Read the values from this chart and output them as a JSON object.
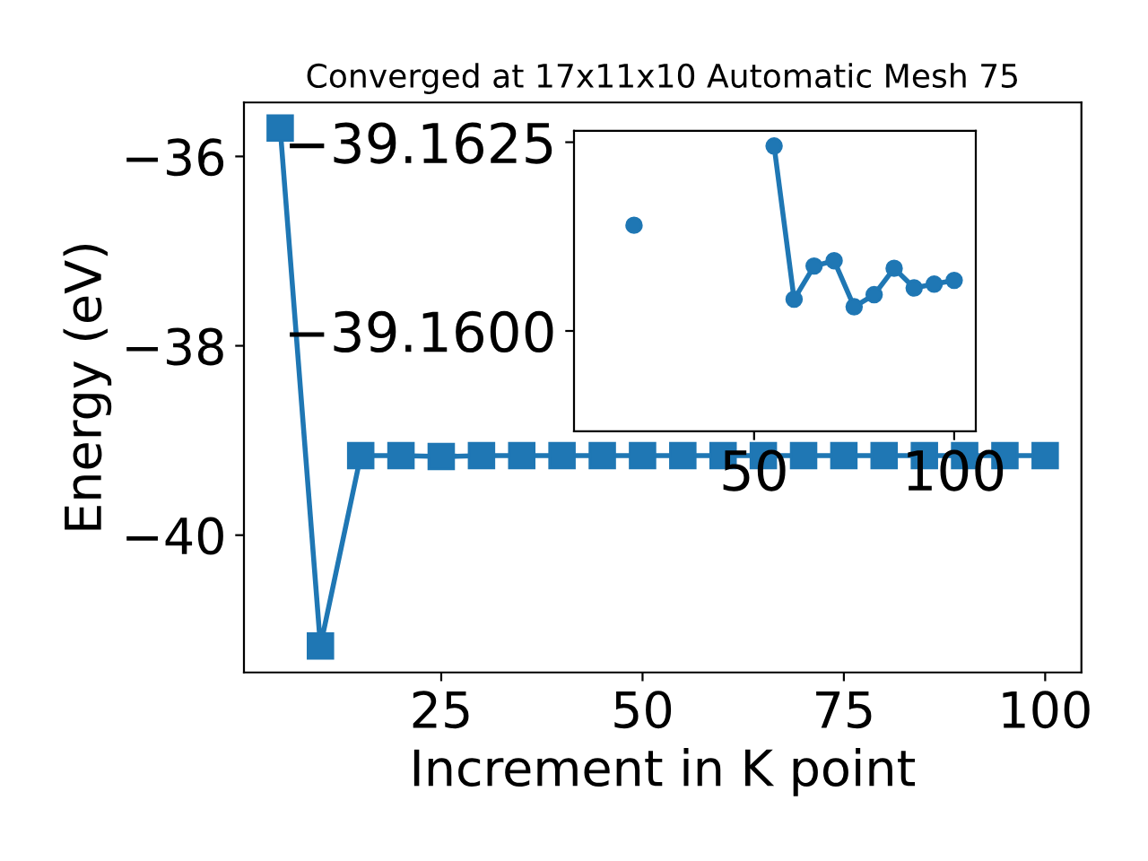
{
  "chart_data": [
    {
      "type": "line",
      "title": "Converged at 17x11x10 Automatic Mesh 75",
      "xlabel": "Increment in K point",
      "ylabel": "Energy (eV)",
      "x": [
        5,
        10,
        15,
        20,
        25,
        30,
        35,
        40,
        45,
        50,
        55,
        60,
        65,
        70,
        75,
        80,
        85,
        90,
        95,
        100
      ],
      "series": [
        {
          "color": "#1f77b4",
          "values": [
            -35.7,
            -41.17,
            -39.16,
            -39.16,
            -39.17,
            -39.16,
            -39.16,
            -39.16,
            -39.16,
            -39.16,
            -39.16,
            -39.16,
            -39.16,
            -39.16,
            -39.16,
            -39.16,
            -39.16,
            -39.16,
            -39.16,
            -39.16
          ]
        }
      ],
      "xlim": [
        0.5,
        104.5
      ],
      "ylim": [
        -41.45,
        -35.43
      ],
      "xticks": [
        25,
        50,
        75,
        100
      ],
      "yticks": [
        {
          "value": -36,
          "label": "−36"
        },
        {
          "value": -38,
          "label": "−38"
        },
        {
          "value": -40,
          "label": "−40"
        }
      ],
      "marker": "square",
      "line_style": "solid",
      "grid": false,
      "legend": false
    },
    {
      "type": "line",
      "series": [
        {
          "color": "#1f77b4",
          "x": [
            20
          ],
          "values": [
            -39.1614
          ]
        },
        {
          "color": "#1f77b4",
          "x": [
            55,
            60,
            65,
            70,
            75,
            80,
            85,
            90,
            95,
            100
          ],
          "values": [
            -39.16245,
            -39.16042,
            -39.16086,
            -39.16093,
            -39.16032,
            -39.16048,
            -39.16083,
            -39.16057,
            -39.16062,
            -39.16067
          ]
        }
      ],
      "xlim": [
        5,
        105.4
      ],
      "ylim": [
        -39.15867,
        -39.16265
      ],
      "xticks": [
        50,
        100
      ],
      "yticks": [
        {
          "value": -39.1625,
          "label": "−39.1625"
        },
        {
          "value": -39.16,
          "label": "−39.1600"
        }
      ],
      "marker": "circle",
      "line_style": "solid",
      "grid": false,
      "legend": false
    }
  ]
}
